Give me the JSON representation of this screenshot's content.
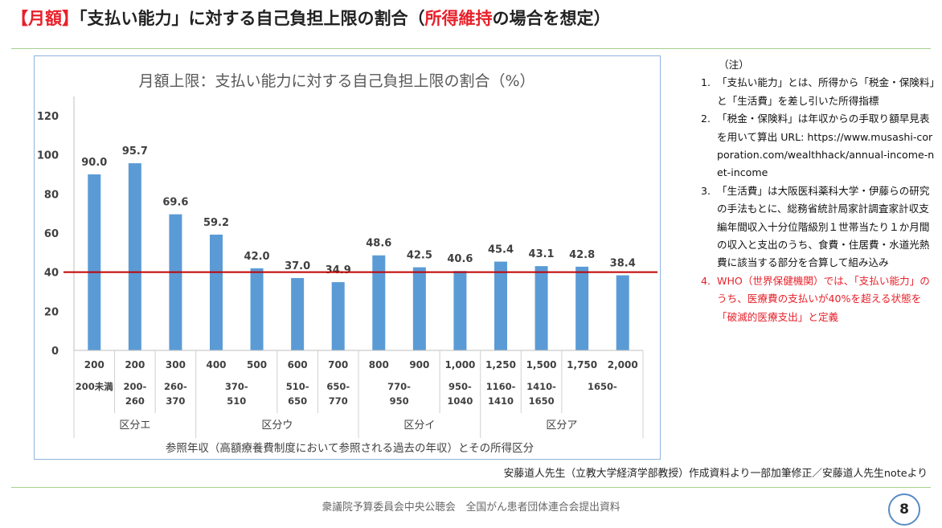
{
  "slide": {
    "title_prefix": "【月額】",
    "title_mid": "「支払い能力」に対する自己負担上限の割合（",
    "title_highlight": "所得維持",
    "title_suffix": "の場合を想定）"
  },
  "chart_data": {
    "type": "bar",
    "title": "月額上限：支払い能力に対する自己負担上限の割合（%）",
    "xlabel": "参照年収（高額療養費制度において参照される過去の年収）とその所得区分",
    "ylabel": "",
    "ylim": [
      0,
      120
    ],
    "yticks": [
      "0",
      "20",
      "40",
      "60",
      "80",
      "100",
      "120"
    ],
    "categories": [
      "200",
      "200",
      "300",
      "400",
      "500",
      "600",
      "700",
      "800",
      "900",
      "1,000",
      "1,250",
      "1,500",
      "1,750",
      "2,000"
    ],
    "values": [
      90.0,
      95.7,
      69.6,
      59.2,
      42.0,
      37.0,
      34.9,
      48.6,
      42.5,
      40.6,
      45.4,
      43.1,
      42.8,
      38.4
    ],
    "value_labels": [
      "90.0",
      "95.7",
      "69.6",
      "59.2",
      "42.0",
      "37.0",
      "34.9",
      "48.6",
      "42.5",
      "40.6",
      "45.4",
      "43.1",
      "42.8",
      "38.4"
    ],
    "reference_line": 40,
    "bar_color": "#5b9bd5",
    "line_color": "#c00000",
    "income_ranges": [
      {
        "label": "200未満",
        "start": 0,
        "span": 1
      },
      {
        "label": "200-\n260",
        "start": 1,
        "span": 1
      },
      {
        "label": "260-\n370",
        "start": 2,
        "span": 1
      },
      {
        "label": "370-\n510",
        "start": 3,
        "span": 2
      },
      {
        "label": "510-\n650",
        "start": 5,
        "span": 1
      },
      {
        "label": "650-\n770",
        "start": 6,
        "span": 1
      },
      {
        "label": "770-\n950",
        "start": 7,
        "span": 2
      },
      {
        "label": "950-\n1040",
        "start": 9,
        "span": 1
      },
      {
        "label": "1160-\n1410",
        "start": 10,
        "span": 1
      },
      {
        "label": "1410-\n1650",
        "start": 11,
        "span": 1
      },
      {
        "label": "1650-",
        "start": 12,
        "span": 2
      }
    ],
    "groups": [
      {
        "label": "区分エ",
        "start": 0,
        "span": 3
      },
      {
        "label": "区分ウ",
        "start": 3,
        "span": 4
      },
      {
        "label": "区分イ",
        "start": 7,
        "span": 3
      },
      {
        "label": "区分ア",
        "start": 10,
        "span": 4
      }
    ]
  },
  "notes": {
    "header": "（注）",
    "items": [
      {
        "text": "「支払い能力」とは、所得から「税金・保険料」と「生活費」を差し引いた所得指標",
        "highlight": false
      },
      {
        "text": "「税金・保険料」は年収からの手取り額早見表を用いて算出 URL: https://www.musashi-corporation.com/wealthhack/annual-income-net-income",
        "highlight": false
      },
      {
        "text": "「生活費」は大阪医科薬科大学・伊藤らの研究の手法もとに、総務省統計局家計調査家計収支編年間収入十分位階級別１世帯当たり１か月間の収入と支出のうち、食費・住居費・水道光熱費に該当する部分を合算して組み込み",
        "highlight": false
      },
      {
        "text": "WHO（世界保健機関）では、「支払い能力」のうち、医療費の支払いが40%を超える状態を「破滅的医療支出」と定義",
        "highlight": true
      }
    ]
  },
  "credit": "安藤道人先生（立教大学経済学部教授）作成資料より一部加筆修正／安藤道人先生noteより",
  "footer": "衆議院予算委員会中央公聴会　全国がん患者団体連合会提出資料",
  "page_number": "8"
}
